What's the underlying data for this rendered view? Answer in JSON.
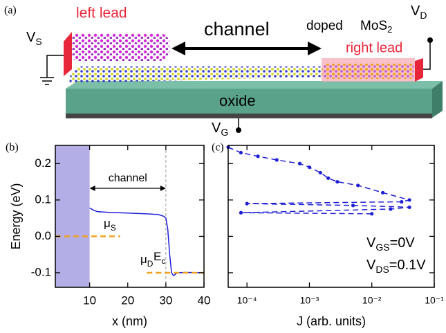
{
  "schematic": {
    "panel": "(a)",
    "left_lead": "left lead",
    "channel": "channel",
    "doped": "doped",
    "mos2": {
      "main": "MoS",
      "sub": "2"
    },
    "right_lead": "right lead",
    "oxide": "oxide",
    "vs": {
      "main": "V",
      "sub": "S"
    },
    "vd": {
      "main": "V",
      "sub": "D"
    },
    "vg": {
      "main": "V",
      "sub": "G"
    }
  },
  "chart_data": [
    {
      "type": "line",
      "panel": "(b)",
      "xlabel": "x (nm)",
      "ylabel": "Energy (eV)",
      "xlim": [
        1,
        40
      ],
      "xticks": [
        10,
        20,
        30,
        40
      ],
      "ylim": [
        -0.14,
        0.25
      ],
      "yticks": [
        -0.1,
        {
          "value": 0,
          "label": "0.0"
        },
        0.1,
        0.2
      ],
      "shade_x": [
        1,
        10
      ],
      "shade_color": "#b3aee6",
      "vline": 30,
      "channel_label": "channel",
      "series": [
        {
          "color": "#1f1fd6",
          "label": {
            "main": "E",
            "sub": "c"
          },
          "x": [
            10,
            11,
            12,
            15,
            20,
            25,
            28,
            29.5,
            30,
            30.5,
            31,
            31.5,
            32,
            33,
            35,
            40
          ],
          "values": [
            0.078,
            0.072,
            0.068,
            0.066,
            0.064,
            0.062,
            0.06,
            0.055,
            0.05,
            0.02,
            -0.05,
            -0.1,
            -0.108,
            -0.1,
            -0.099,
            -0.1
          ]
        },
        {
          "color": "#f0a21e",
          "dashed": true,
          "label": {
            "main": "μ",
            "sub": "S"
          },
          "x": [
            1,
            18
          ],
          "values": [
            0,
            0
          ]
        },
        {
          "color": "#f0a21e",
          "dashed": true,
          "label": {
            "main": "μ",
            "sub": "D"
          },
          "x": [
            25,
            40
          ],
          "values": [
            -0.1,
            -0.1
          ]
        }
      ]
    },
    {
      "type": "line",
      "xscale": "log",
      "panel": "(c)",
      "xlabel": "J (arb. units)",
      "xlim": [
        5e-05,
        0.1
      ],
      "xticks": [
        {
          "value": 0.0001,
          "label": "10⁻⁴"
        },
        {
          "value": 0.001,
          "label": "10⁻³"
        },
        {
          "value": 0.01,
          "label": "10⁻²"
        },
        {
          "value": 0.1,
          "label": "10⁻¹"
        }
      ],
      "ylim": [
        -0.14,
        0.25
      ],
      "yticks": [
        -0.1,
        0,
        0.1,
        0.2
      ],
      "ytick_labels": false,
      "markers": true,
      "series": [
        {
          "color": "#1f1fd6",
          "dashed": true,
          "x": [
            5e-05,
            8e-05,
            0.00015,
            0.0003,
            0.0007,
            0.001,
            0.0015,
            0.002,
            0.0028,
            0.006,
            0.015,
            0.04,
            0.03,
            0.0001,
            0.005,
            0.04,
            0.02,
            8e-05,
            0.01
          ],
          "values": [
            0.245,
            0.23,
            0.22,
            0.21,
            0.2,
            0.19,
            0.175,
            0.16,
            0.15,
            0.14,
            0.12,
            0.1,
            0.095,
            0.09,
            0.085,
            0.08,
            0.075,
            0.065,
            0.062
          ]
        }
      ],
      "annotations": [
        {
          "main": "V",
          "sub": "GS",
          "rest": "=0V"
        },
        {
          "main": "V",
          "sub": "DS",
          "rest": "=0.1V"
        }
      ]
    }
  ]
}
